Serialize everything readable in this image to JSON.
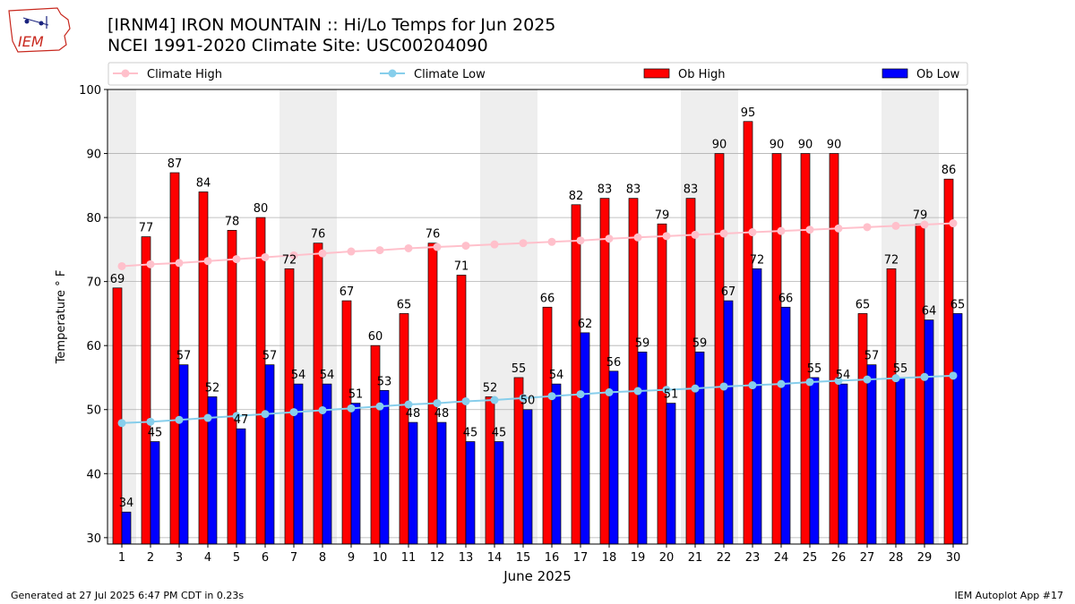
{
  "header": {
    "title": "[IRNM4] IRON MOUNTAIN :: Hi/Lo Temps for Jun 2025",
    "subtitle": "NCEI 1991-2020 Climate Site: USC00204090",
    "logo_text": "IEM"
  },
  "footer": {
    "generated": "Generated at 27 Jul 2025 6:47 PM CDT in 0.23s",
    "app": "IEM Autoplot App #17"
  },
  "colors": {
    "ob_high": "#ff0000",
    "ob_low": "#0000ff",
    "climate_high": "#ffc0cb",
    "climate_low": "#87ceeb",
    "weekend_band": "#eeeeee",
    "grid": "#b0b0b0",
    "logo": "#c8281e"
  },
  "chart_data": {
    "type": "bar",
    "xlabel": "June 2025",
    "ylabel": "Temperature ° F",
    "ylim": [
      29,
      100
    ],
    "yticks": [
      30,
      40,
      50,
      60,
      70,
      80,
      90,
      100
    ],
    "grid": true,
    "legend_position": "top",
    "categories": [
      "1",
      "2",
      "3",
      "4",
      "5",
      "6",
      "7",
      "8",
      "9",
      "10",
      "11",
      "12",
      "13",
      "14",
      "15",
      "16",
      "17",
      "18",
      "19",
      "20",
      "21",
      "22",
      "23",
      "24",
      "25",
      "26",
      "27",
      "28",
      "29",
      "30"
    ],
    "shaded_days": [
      1,
      7,
      8,
      14,
      15,
      21,
      22,
      28,
      29
    ],
    "series": [
      {
        "name": "Climate High",
        "kind": "line",
        "values": [
          72.4,
          72.7,
          72.9,
          73.2,
          73.5,
          73.8,
          74.1,
          74.4,
          74.7,
          74.9,
          75.2,
          75.4,
          75.6,
          75.8,
          76.0,
          76.2,
          76.4,
          76.7,
          76.9,
          77.1,
          77.3,
          77.5,
          77.7,
          77.9,
          78.1,
          78.3,
          78.5,
          78.7,
          78.9,
          79.1
        ]
      },
      {
        "name": "Climate Low",
        "kind": "line",
        "values": [
          47.9,
          48.1,
          48.4,
          48.7,
          49.0,
          49.3,
          49.6,
          49.9,
          50.2,
          50.5,
          50.8,
          51.0,
          51.3,
          51.5,
          51.8,
          52.1,
          52.4,
          52.7,
          52.9,
          53.1,
          53.3,
          53.6,
          53.8,
          54.0,
          54.3,
          54.5,
          54.7,
          54.9,
          55.1,
          55.3
        ]
      },
      {
        "name": "Ob High",
        "kind": "bar",
        "values": [
          69,
          77,
          87,
          84,
          78,
          80,
          72,
          76,
          67,
          60,
          65,
          76,
          71,
          52,
          55,
          66,
          82,
          83,
          83,
          79,
          83,
          90,
          95,
          90,
          90,
          90,
          65,
          72,
          79,
          86
        ]
      },
      {
        "name": "Ob Low",
        "kind": "bar",
        "values": [
          34,
          45,
          57,
          52,
          47,
          57,
          54,
          54,
          51,
          53,
          48,
          48,
          45,
          45,
          50,
          54,
          62,
          56,
          59,
          51,
          59,
          67,
          72,
          66,
          55,
          54,
          57,
          55,
          64,
          65
        ]
      }
    ]
  }
}
